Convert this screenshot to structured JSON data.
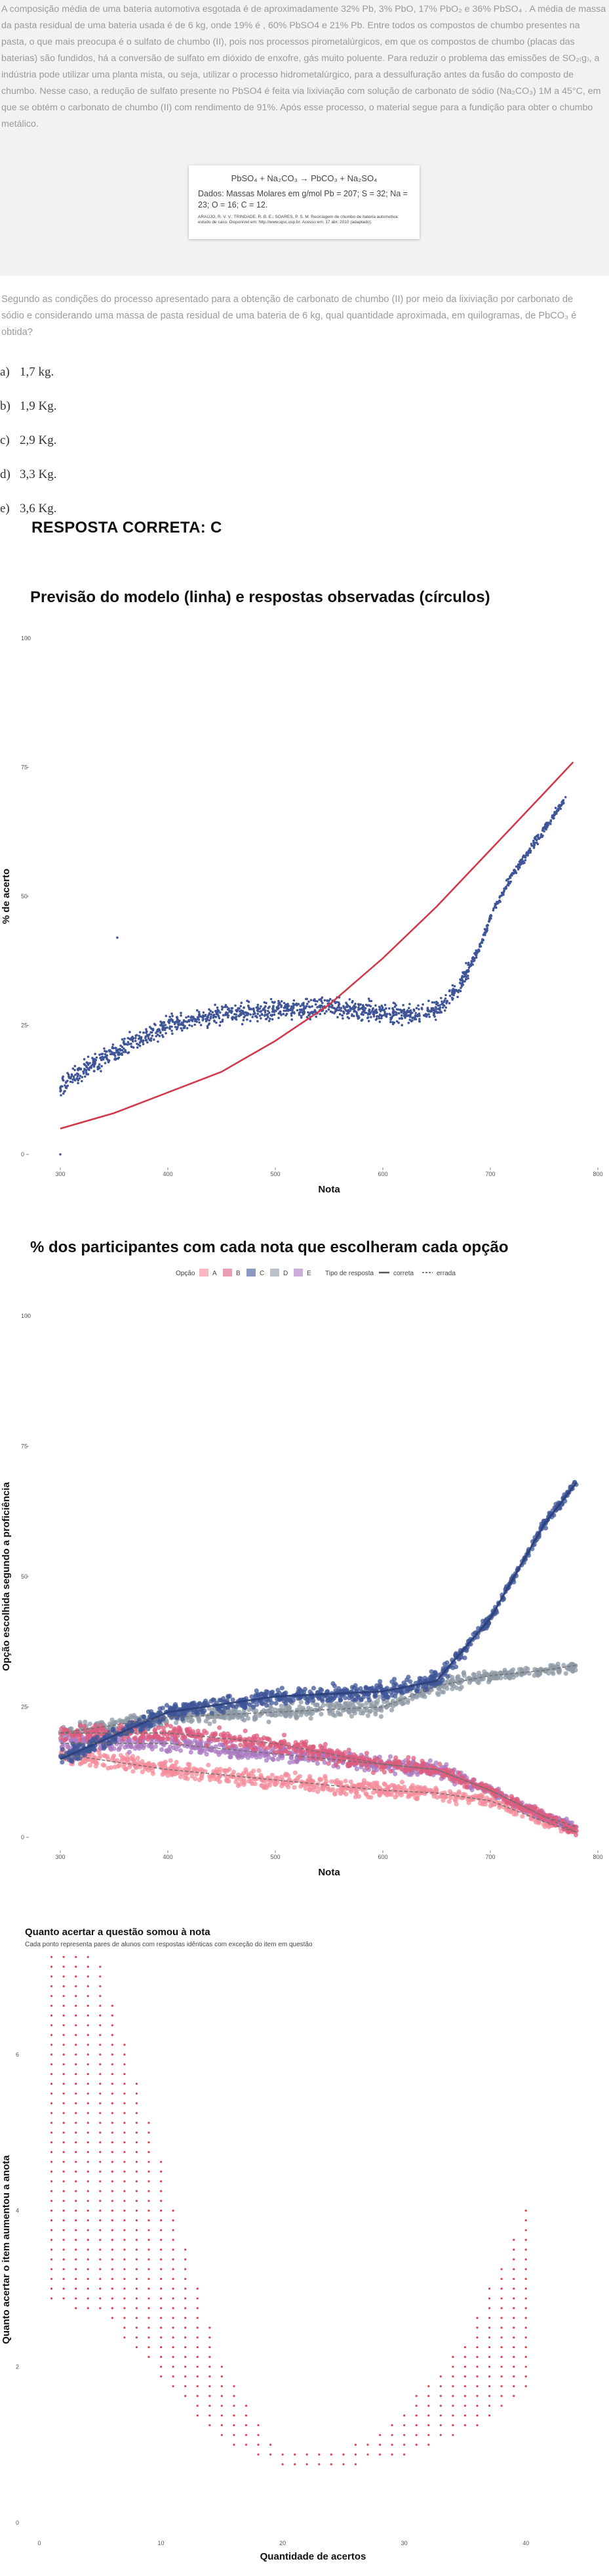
{
  "question": {
    "paragraph": "A composição média de uma bateria automotiva esgotada é de aproximadamente 32% Pb, 3% PbO, 17% PbO₂ e 36% PbSO₄ . A média de massa da pasta residual de uma bateria usada é de 6 kg, onde 19% é , 60% PbSO4 e 21% Pb. Entre todos os compostos de chumbo presentes na pasta, o que mais preocupa é o sulfato de chumbo (II), pois nos processos pirometalúrgicos, em que os compostos de chumbo (placas das baterias) são fundidos, há a conversão de sulfato em dióxido de enxofre, gás muito poluente. Para reduzir o problema das emissões de SO₂₍g₎, a indústria pode utilizar uma planta mista, ou seja, utilizar o processo hidrometalúrgico, para a dessulfuração antes da fusão do composto de chumbo. Nesse caso, a redução de sulfato presente no PbSO4 é feita via lixiviação com solução de carbonato de sódio (Na₂CO₃) 1M a 45°C, em que se obtém o carbonato de chumbo (II) com rendimento de 91%. Após esse processo, o material segue para a fundição para obter o chumbo metálico.",
    "equation": "PbSO₄ + Na₂CO₃ → PbCO₃ + Na₂SO₄",
    "molar_masses": "Dados: Massas Molares em g/mol Pb = 207; S = 32; Na = 23; O = 16; C = 12.",
    "reference": "ARAÚJO, R. V. V.; TRINDADE, R. B. E.; SOARES, P. S. M. Reciclagem de chumbo de bateria automotiva: estudo de caso. Disponível em: http://www.iqsc.usp.br. Acesso em: 17 abr. 2010 (adaptado).",
    "prompt": "Segundo as condições do processo apresentado para a obtenção de carbonato de chumbo (II) por meio da lixiviação por carbonato de sódio e considerando uma massa de pasta residual de uma bateria de 6 kg, qual quantidade aproximada, em quilogramas, de PbCO₃ é obtida?",
    "options": [
      {
        "letter": "a)",
        "text": "1,7 kg."
      },
      {
        "letter": "b)",
        "text": "1,9 Kg."
      },
      {
        "letter": "c)",
        "text": "2,9 Kg."
      },
      {
        "letter": "d)",
        "text": "3,3 Kg."
      },
      {
        "letter": "e)",
        "text": "3,6 Kg."
      }
    ],
    "answer": "RESPOSTA CORRETA: C"
  },
  "chart_data": [
    {
      "type": "scatter",
      "title": "Previsão do modelo (linha) e respostas observadas (círculos)",
      "xlabel": "Nota",
      "ylabel": "% de acerto",
      "xlim": [
        300,
        800
      ],
      "ylim": [
        0,
        100
      ],
      "xticks": [
        "300",
        "400",
        "500",
        "600",
        "700",
        "800"
      ],
      "yticks": [
        "0",
        "25",
        "50",
        "75",
        "100"
      ],
      "colors": {
        "points": "#3f5597",
        "model": "#d13a4c"
      },
      "series": [
        {
          "role": "model line",
          "x": [
            300,
            350,
            400,
            450,
            500,
            550,
            600,
            650,
            700,
            750,
            777
          ],
          "y": [
            5,
            8,
            12,
            16,
            22,
            29,
            38,
            48,
            59,
            70,
            76
          ]
        },
        {
          "role": "observed points (trend)",
          "x": [
            300,
            320,
            350,
            380,
            400,
            450,
            500,
            550,
            600,
            630,
            650,
            670,
            690,
            700,
            720,
            750,
            770
          ],
          "y": [
            13,
            16,
            20,
            23,
            25,
            27,
            28,
            28.5,
            27.5,
            27,
            28,
            32,
            40,
            46,
            54,
            63,
            69
          ]
        }
      ],
      "annotations": [
        {
          "x": 353,
          "y": 42
        },
        {
          "x": 300,
          "y": 0
        }
      ]
    },
    {
      "type": "scatter",
      "title": "% dos participantes com cada nota que escolheram cada opção",
      "xlabel": "Nota",
      "ylabel": "Opção escolhida segundo a proficiência",
      "xlim": [
        300,
        800
      ],
      "ylim": [
        0,
        100
      ],
      "xticks": [
        "300",
        "400",
        "500",
        "600",
        "700",
        "800"
      ],
      "yticks": [
        "0",
        "25",
        "50",
        "75",
        "100"
      ],
      "legend": {
        "option_title": "Opção",
        "options": [
          "A",
          "B",
          "C",
          "D",
          "E"
        ],
        "type_title": "Tipo de resposta",
        "types": [
          "correta",
          "errada"
        ]
      },
      "series": [
        {
          "name": "A",
          "color": "#f48b9a",
          "x": [
            300,
            400,
            500,
            600,
            650,
            700,
            750,
            780
          ],
          "y": [
            16,
            13,
            11,
            9,
            8.5,
            7,
            3,
            1
          ]
        },
        {
          "name": "B",
          "color": "#dd5c7e",
          "x": [
            300,
            400,
            500,
            600,
            650,
            700,
            750,
            780
          ],
          "y": [
            20,
            20,
            18,
            14,
            13,
            9,
            4,
            1
          ]
        },
        {
          "name": "C",
          "color": "#3f5597",
          "x": [
            300,
            400,
            500,
            600,
            650,
            700,
            750,
            780
          ],
          "y": [
            15,
            24,
            27,
            28,
            30,
            42,
            60,
            68
          ]
        },
        {
          "name": "D",
          "color": "#8e9aa6",
          "x": [
            300,
            400,
            500,
            600,
            650,
            700,
            750,
            780
          ],
          "y": [
            20,
            23,
            24,
            25,
            29,
            31,
            32,
            33
          ]
        },
        {
          "name": "E",
          "color": "#a978c0",
          "x": [
            300,
            400,
            500,
            600,
            650,
            700,
            750,
            780
          ],
          "y": [
            18,
            18,
            16,
            14,
            13,
            9,
            4,
            2
          ]
        }
      ]
    },
    {
      "type": "scatter",
      "title": "Quanto acertar a questão somou à nota",
      "subtitle": "Cada ponto representa pares de alunos com respostas idênticas com exceção do item em questão",
      "xlabel": "Quantidade de acertos",
      "ylabel": "Quanto acertar o item aumentou a anota",
      "xlim": [
        0,
        45
      ],
      "ylim": [
        0,
        7
      ],
      "xticks": [
        "0",
        "10",
        "20",
        "30",
        "40"
      ],
      "yticks": [
        "0",
        "2",
        "4",
        "6"
      ],
      "colors": {
        "points": "#e0414f"
      },
      "trend": {
        "x": [
          1,
          5,
          10,
          15,
          20,
          25,
          30,
          35,
          40
        ],
        "y": [
          5.5,
          5.2,
          3.4,
          1.6,
          0.8,
          0.8,
          1.2,
          1.8,
          3.0
        ]
      }
    }
  ]
}
